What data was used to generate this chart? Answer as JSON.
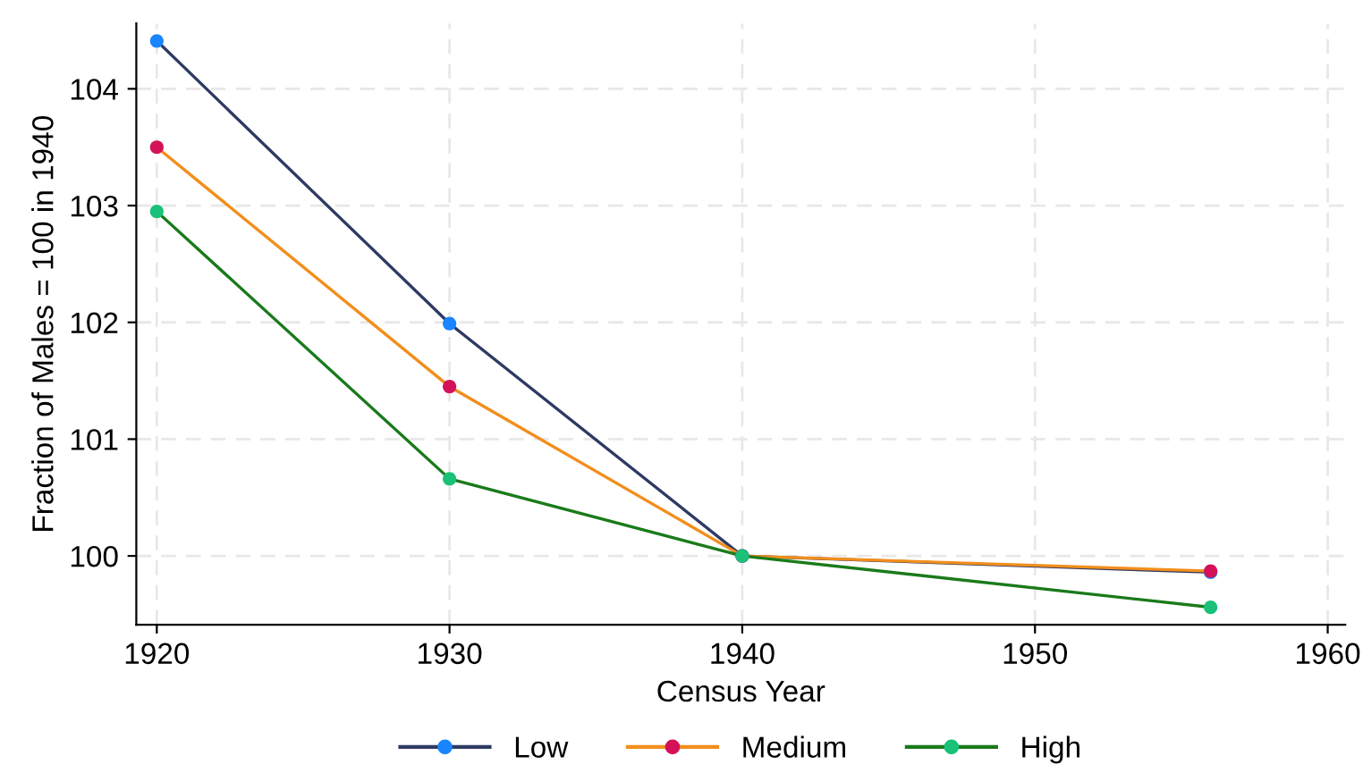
{
  "chart_data": {
    "type": "line",
    "xlabel": "Census Year",
    "ylabel": "Fraction of Males = 100 in 1940",
    "x": [
      1920,
      1930,
      1940,
      1956
    ],
    "series": [
      {
        "name": "Low",
        "color": "#2e3a63",
        "colors": [
          "#1a85ff",
          "#1a85ff",
          "#1a85ff",
          "#1a85ff"
        ],
        "values": [
          104.41,
          101.99,
          100,
          99.86
        ]
      },
      {
        "name": "Medium",
        "color": "#f28e1c",
        "colors": [
          "#d41159",
          "#d41159",
          "#d41159",
          "#d41159"
        ],
        "values": [
          103.5,
          101.45,
          100,
          99.87
        ]
      },
      {
        "name": "High",
        "color": "#1a7a1a",
        "colors": [
          "#1ac178",
          "#1ac178",
          "#1ac178",
          "#1ac178"
        ],
        "values": [
          102.95,
          100.66,
          100,
          99.56
        ]
      }
    ],
    "xlim": [
      1919.3,
      1960.6
    ],
    "ylim": [
      99.41,
      104.56
    ],
    "xticks": [
      1920,
      1930,
      1940,
      1950,
      1960
    ],
    "yticks": [
      100,
      101,
      102,
      103,
      104
    ],
    "grid": true,
    "legend": "bottom",
    "marker": "circle",
    "line_style": "solid"
  }
}
